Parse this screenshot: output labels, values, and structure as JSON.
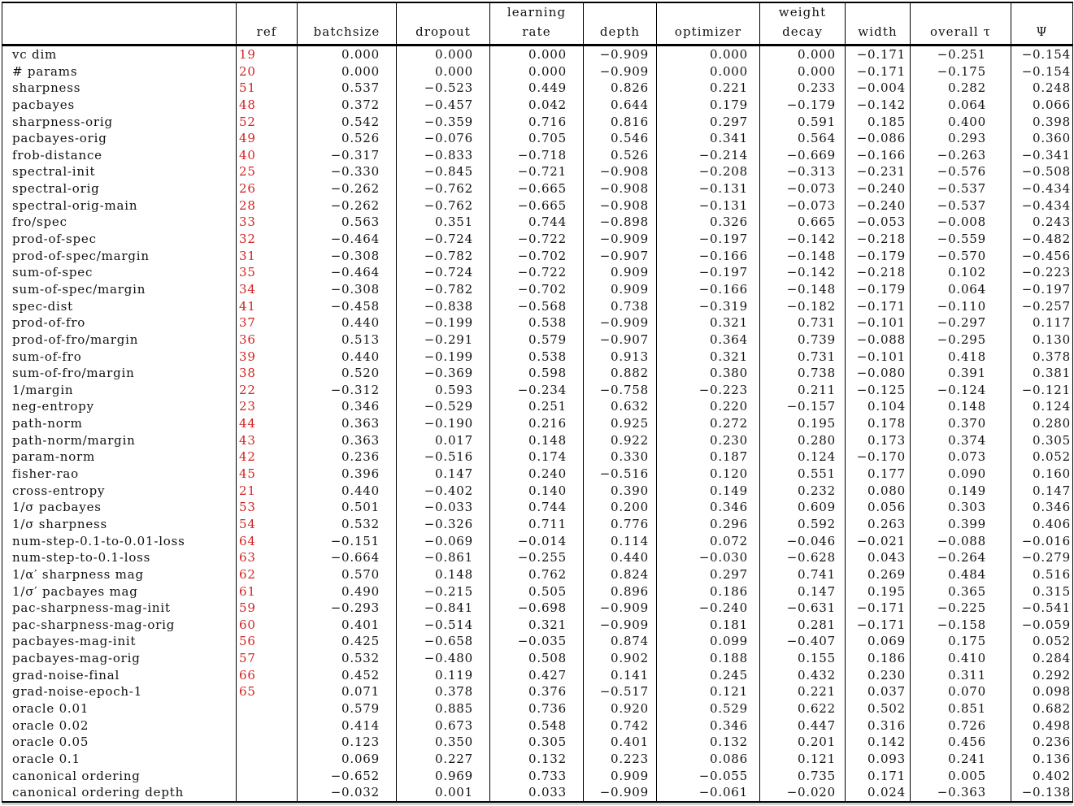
{
  "colors": {
    "ref_link": "#d22222",
    "border": "#000000",
    "text": "#111111",
    "background": "#ffffff"
  },
  "table": {
    "headers": [
      {
        "key": "name",
        "line1": "",
        "line2": ""
      },
      {
        "key": "ref",
        "line1": "",
        "line2": "ref"
      },
      {
        "key": "batchsize",
        "line1": "",
        "line2": "batchsize"
      },
      {
        "key": "dropout",
        "line1": "",
        "line2": "dropout"
      },
      {
        "key": "learning_rate",
        "line1": "learning",
        "line2": "rate"
      },
      {
        "key": "depth",
        "line1": "",
        "line2": "depth"
      },
      {
        "key": "optimizer",
        "line1": "",
        "line2": "optimizer"
      },
      {
        "key": "weight_decay",
        "line1": "weight",
        "line2": "decay"
      },
      {
        "key": "width",
        "line1": "",
        "line2": "width"
      },
      {
        "key": "overall_tau",
        "line1": "",
        "line2": "overall τ"
      },
      {
        "key": "psi",
        "line1": "",
        "line2": "Ψ"
      }
    ],
    "rows": [
      {
        "name": "vc dim",
        "ref": "19",
        "values": [
          "0.000",
          "0.000",
          "0.000",
          "−0.909",
          "0.000",
          "0.000",
          "−0.171",
          "−0.251",
          "−0.154"
        ]
      },
      {
        "name": "# params",
        "ref": "20",
        "values": [
          "0.000",
          "0.000",
          "0.000",
          "−0.909",
          "0.000",
          "0.000",
          "−0.171",
          "−0.175",
          "−0.154"
        ]
      },
      {
        "name": "sharpness",
        "ref": "51",
        "values": [
          "0.537",
          "−0.523",
          "0.449",
          "0.826",
          "0.221",
          "0.233",
          "−0.004",
          "0.282",
          "0.248"
        ]
      },
      {
        "name": "pacbayes",
        "ref": "48",
        "values": [
          "0.372",
          "−0.457",
          "0.042",
          "0.644",
          "0.179",
          "−0.179",
          "−0.142",
          "0.064",
          "0.066"
        ]
      },
      {
        "name": "sharpness-orig",
        "ref": "52",
        "values": [
          "0.542",
          "−0.359",
          "0.716",
          "0.816",
          "0.297",
          "0.591",
          "0.185",
          "0.400",
          "0.398"
        ]
      },
      {
        "name": "pacbayes-orig",
        "ref": "49",
        "values": [
          "0.526",
          "−0.076",
          "0.705",
          "0.546",
          "0.341",
          "0.564",
          "−0.086",
          "0.293",
          "0.360"
        ]
      },
      {
        "name": "frob-distance",
        "ref": "40",
        "values": [
          "−0.317",
          "−0.833",
          "−0.718",
          "0.526",
          "−0.214",
          "−0.669",
          "−0.166",
          "−0.263",
          "−0.341"
        ]
      },
      {
        "name": "spectral-init",
        "ref": "25",
        "values": [
          "−0.330",
          "−0.845",
          "−0.721",
          "−0.908",
          "−0.208",
          "−0.313",
          "−0.231",
          "−0.576",
          "−0.508"
        ]
      },
      {
        "name": "spectral-orig",
        "ref": "26",
        "values": [
          "−0.262",
          "−0.762",
          "−0.665",
          "−0.908",
          "−0.131",
          "−0.073",
          "−0.240",
          "−0.537",
          "−0.434"
        ]
      },
      {
        "name": "spectral-orig-main",
        "ref": "28",
        "values": [
          "−0.262",
          "−0.762",
          "−0.665",
          "−0.908",
          "−0.131",
          "−0.073",
          "−0.240",
          "−0.537",
          "−0.434"
        ]
      },
      {
        "name": "fro/spec",
        "ref": "33",
        "values": [
          "0.563",
          "0.351",
          "0.744",
          "−0.898",
          "0.326",
          "0.665",
          "−0.053",
          "−0.008",
          "0.243"
        ]
      },
      {
        "name": "prod-of-spec",
        "ref": "32",
        "values": [
          "−0.464",
          "−0.724",
          "−0.722",
          "−0.909",
          "−0.197",
          "−0.142",
          "−0.218",
          "−0.559",
          "−0.482"
        ]
      },
      {
        "name": "prod-of-spec/margin",
        "ref": "31",
        "values": [
          "−0.308",
          "−0.782",
          "−0.702",
          "−0.907",
          "−0.166",
          "−0.148",
          "−0.179",
          "−0.570",
          "−0.456"
        ]
      },
      {
        "name": "sum-of-spec",
        "ref": "35",
        "values": [
          "−0.464",
          "−0.724",
          "−0.722",
          "0.909",
          "−0.197",
          "−0.142",
          "−0.218",
          "0.102",
          "−0.223"
        ]
      },
      {
        "name": "sum-of-spec/margin",
        "ref": "34",
        "values": [
          "−0.308",
          "−0.782",
          "−0.702",
          "0.909",
          "−0.166",
          "−0.148",
          "−0.179",
          "0.064",
          "−0.197"
        ]
      },
      {
        "name": "spec-dist",
        "ref": "41",
        "values": [
          "−0.458",
          "−0.838",
          "−0.568",
          "0.738",
          "−0.319",
          "−0.182",
          "−0.171",
          "−0.110",
          "−0.257"
        ]
      },
      {
        "name": "prod-of-fro",
        "ref": "37",
        "values": [
          "0.440",
          "−0.199",
          "0.538",
          "−0.909",
          "0.321",
          "0.731",
          "−0.101",
          "−0.297",
          "0.117"
        ]
      },
      {
        "name": "prod-of-fro/margin",
        "ref": "36",
        "values": [
          "0.513",
          "−0.291",
          "0.579",
          "−0.907",
          "0.364",
          "0.739",
          "−0.088",
          "−0.295",
          "0.130"
        ]
      },
      {
        "name": "sum-of-fro",
        "ref": "39",
        "values": [
          "0.440",
          "−0.199",
          "0.538",
          "0.913",
          "0.321",
          "0.731",
          "−0.101",
          "0.418",
          "0.378"
        ]
      },
      {
        "name": "sum-of-fro/margin",
        "ref": "38",
        "values": [
          "0.520",
          "−0.369",
          "0.598",
          "0.882",
          "0.380",
          "0.738",
          "−0.080",
          "0.391",
          "0.381"
        ]
      },
      {
        "name": "1/margin",
        "ref": "22",
        "values": [
          "−0.312",
          "0.593",
          "−0.234",
          "−0.758",
          "−0.223",
          "0.211",
          "−0.125",
          "−0.124",
          "−0.121"
        ]
      },
      {
        "name": "neg-entropy",
        "ref": "23",
        "values": [
          "0.346",
          "−0.529",
          "0.251",
          "0.632",
          "0.220",
          "−0.157",
          "0.104",
          "0.148",
          "0.124"
        ]
      },
      {
        "name": "path-norm",
        "ref": "44",
        "values": [
          "0.363",
          "−0.190",
          "0.216",
          "0.925",
          "0.272",
          "0.195",
          "0.178",
          "0.370",
          "0.280"
        ]
      },
      {
        "name": "path-norm/margin",
        "ref": "43",
        "values": [
          "0.363",
          "0.017",
          "0.148",
          "0.922",
          "0.230",
          "0.280",
          "0.173",
          "0.374",
          "0.305"
        ]
      },
      {
        "name": "param-norm",
        "ref": "42",
        "values": [
          "0.236",
          "−0.516",
          "0.174",
          "0.330",
          "0.187",
          "0.124",
          "−0.170",
          "0.073",
          "0.052"
        ]
      },
      {
        "name": "fisher-rao",
        "ref": "45",
        "values": [
          "0.396",
          "0.147",
          "0.240",
          "−0.516",
          "0.120",
          "0.551",
          "0.177",
          "0.090",
          "0.160"
        ]
      },
      {
        "name": "cross-entropy",
        "ref": "21",
        "values": [
          "0.440",
          "−0.402",
          "0.140",
          "0.390",
          "0.149",
          "0.232",
          "0.080",
          "0.149",
          "0.147"
        ]
      },
      {
        "name": "1/σ pacbayes",
        "ref": "53",
        "values": [
          "0.501",
          "−0.033",
          "0.744",
          "0.200",
          "0.346",
          "0.609",
          "0.056",
          "0.303",
          "0.346"
        ]
      },
      {
        "name": "1/σ sharpness",
        "ref": "54",
        "values": [
          "0.532",
          "−0.326",
          "0.711",
          "0.776",
          "0.296",
          "0.592",
          "0.263",
          "0.399",
          "0.406"
        ]
      },
      {
        "name": "num-step-0.1-to-0.01-loss",
        "ref": "64",
        "values": [
          "−0.151",
          "−0.069",
          "−0.014",
          "0.114",
          "0.072",
          "−0.046",
          "−0.021",
          "−0.088",
          "−0.016"
        ]
      },
      {
        "name": "num-step-to-0.1-loss",
        "ref": "63",
        "values": [
          "−0.664",
          "−0.861",
          "−0.255",
          "0.440",
          "−0.030",
          "−0.628",
          "0.043",
          "−0.264",
          "−0.279"
        ]
      },
      {
        "name": "1/α′ sharpness mag",
        "ref": "62",
        "values": [
          "0.570",
          "0.148",
          "0.762",
          "0.824",
          "0.297",
          "0.741",
          "0.269",
          "0.484",
          "0.516"
        ]
      },
      {
        "name": "1/σ′ pacbayes mag",
        "ref": "61",
        "values": [
          "0.490",
          "−0.215",
          "0.505",
          "0.896",
          "0.186",
          "0.147",
          "0.195",
          "0.365",
          "0.315"
        ]
      },
      {
        "name": "pac-sharpness-mag-init",
        "ref": "59",
        "values": [
          "−0.293",
          "−0.841",
          "−0.698",
          "−0.909",
          "−0.240",
          "−0.631",
          "−0.171",
          "−0.225",
          "−0.541"
        ]
      },
      {
        "name": "pac-sharpness-mag-orig",
        "ref": "60",
        "values": [
          "0.401",
          "−0.514",
          "0.321",
          "−0.909",
          "0.181",
          "0.281",
          "−0.171",
          "−0.158",
          "−0.059"
        ]
      },
      {
        "name": "pacbayes-mag-init",
        "ref": "56",
        "values": [
          "0.425",
          "−0.658",
          "−0.035",
          "0.874",
          "0.099",
          "−0.407",
          "0.069",
          "0.175",
          "0.052"
        ]
      },
      {
        "name": "pacbayes-mag-orig",
        "ref": "57",
        "values": [
          "0.532",
          "−0.480",
          "0.508",
          "0.902",
          "0.188",
          "0.155",
          "0.186",
          "0.410",
          "0.284"
        ]
      },
      {
        "name": "grad-noise-final",
        "ref": "66",
        "values": [
          "0.452",
          "0.119",
          "0.427",
          "0.141",
          "0.245",
          "0.432",
          "0.230",
          "0.311",
          "0.292"
        ]
      },
      {
        "name": "grad-noise-epoch-1",
        "ref": "65",
        "values": [
          "0.071",
          "0.378",
          "0.376",
          "−0.517",
          "0.121",
          "0.221",
          "0.037",
          "0.070",
          "0.098"
        ]
      },
      {
        "name": "oracle 0.01",
        "ref": "",
        "values": [
          "0.579",
          "0.885",
          "0.736",
          "0.920",
          "0.529",
          "0.622",
          "0.502",
          "0.851",
          "0.682"
        ]
      },
      {
        "name": "oracle 0.02",
        "ref": "",
        "values": [
          "0.414",
          "0.673",
          "0.548",
          "0.742",
          "0.346",
          "0.447",
          "0.316",
          "0.726",
          "0.498"
        ]
      },
      {
        "name": "oracle 0.05",
        "ref": "",
        "values": [
          "0.123",
          "0.350",
          "0.305",
          "0.401",
          "0.132",
          "0.201",
          "0.142",
          "0.456",
          "0.236"
        ]
      },
      {
        "name": "oracle 0.1",
        "ref": "",
        "values": [
          "0.069",
          "0.227",
          "0.132",
          "0.223",
          "0.086",
          "0.121",
          "0.093",
          "0.241",
          "0.136"
        ]
      },
      {
        "name": "canonical ordering",
        "ref": "",
        "values": [
          "−0.652",
          "0.969",
          "0.733",
          "0.909",
          "−0.055",
          "0.735",
          "0.171",
          "0.005",
          "0.402"
        ]
      },
      {
        "name": "canonical ordering depth",
        "ref": "",
        "values": [
          "−0.032",
          "0.001",
          "0.033",
          "−0.909",
          "−0.061",
          "−0.020",
          "0.024",
          "−0.363",
          "−0.138"
        ]
      }
    ]
  }
}
